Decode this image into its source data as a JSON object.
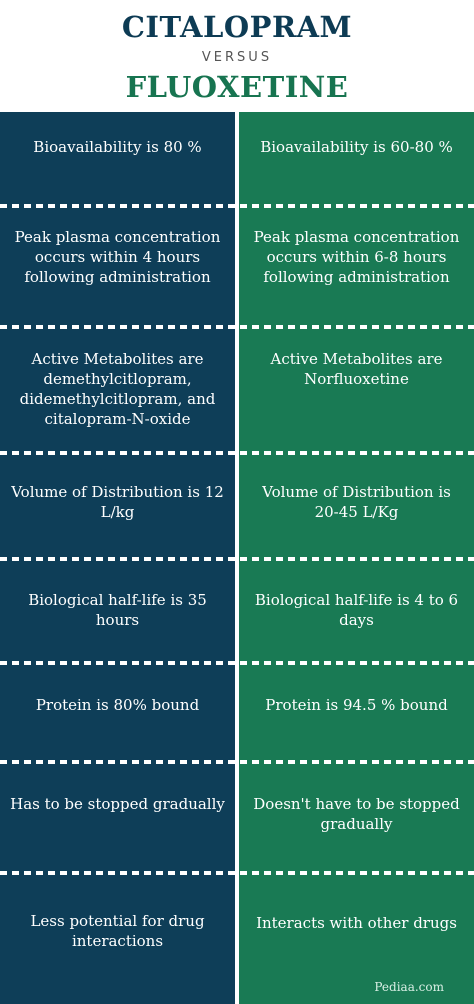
{
  "header": {
    "title_a": "CITALOPRAM",
    "versus": "VERSUS",
    "title_b": "FLUOXETINE"
  },
  "colors": {
    "left_column": "#0e3e58",
    "right_column": "#197a54",
    "title_a": "#0d3b54",
    "title_b": "#177450"
  },
  "rows": [
    {
      "left": "Bioavailability is 80 %",
      "right": "Bioavailability is 60-80 %"
    },
    {
      "left": "Peak plasma concentration occurs within 4 hours following administration",
      "right": "Peak plasma concentration occurs within 6-8 hours following administration"
    },
    {
      "left": "Active Metabolites are demethylcitlopram, didemethylcitlopram, and citalopram-N-oxide",
      "right": "Active Metabolites are Norfluoxetine"
    },
    {
      "left": "Volume of Distribution is 12 L/kg",
      "right": "Volume of Distribution is 20-45 L/Kg"
    },
    {
      "left": "Biological half-life is 35 hours",
      "right": "Biological half-life is 4 to 6 days"
    },
    {
      "left": "Protein is 80% bound",
      "right": "Protein is 94.5 % bound"
    },
    {
      "left": "Has to be stopped gradually",
      "right": "Doesn't have to be stopped gradually"
    },
    {
      "left": "Less potential for drug interactions",
      "right": "Interacts with other drugs"
    }
  ],
  "footer": {
    "logo": "Pediaa.com"
  }
}
